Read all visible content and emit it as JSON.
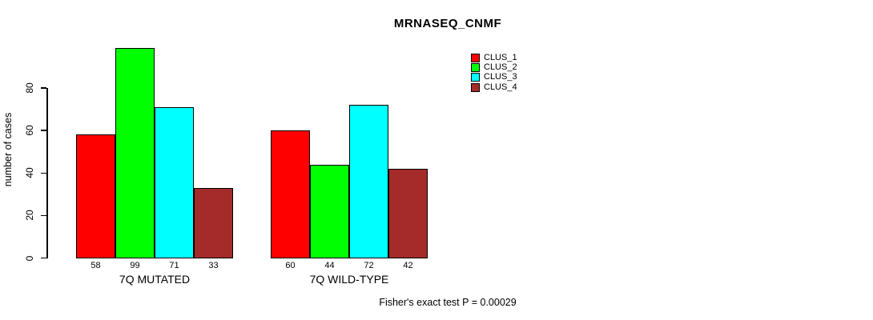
{
  "chart_data": {
    "type": "bar",
    "title": "MRNASEQ_CNMF",
    "ylabel": "number of cases",
    "xlabel": "",
    "categories": [
      "7Q MUTATED",
      "7Q WILD-TYPE"
    ],
    "series": [
      {
        "name": "CLUS_1",
        "color": "#ff0000",
        "values": [
          58,
          60
        ]
      },
      {
        "name": "CLUS_2",
        "color": "#00ff00",
        "values": [
          99,
          44
        ]
      },
      {
        "name": "CLUS_3",
        "color": "#00ffff",
        "values": [
          71,
          72
        ]
      },
      {
        "name": "CLUS_4",
        "color": "#a52a2a",
        "values": [
          33,
          42
        ]
      }
    ],
    "bar_value_labels": [
      [
        "58",
        "99",
        "71",
        "33"
      ],
      [
        "60",
        "44",
        "72",
        "42"
      ]
    ],
    "yticks": [
      0,
      20,
      40,
      60,
      80
    ],
    "ylim": [
      0,
      102
    ],
    "grid": false,
    "legend_position": "top-right",
    "legend_entries": [
      "CLUS_1",
      "CLUS_2",
      "CLUS_3",
      "CLUS_4"
    ],
    "annotation": "Fisher's exact test P = 0.00029"
  }
}
